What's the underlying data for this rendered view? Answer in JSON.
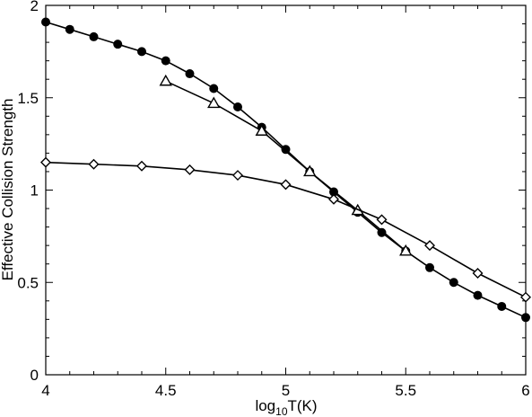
{
  "chart_data": {
    "type": "line",
    "xlabel": {
      "main": "log",
      "sub": "10",
      "rest": "T(K)"
    },
    "ylabel": "Effective Collision Strength",
    "xlim": [
      4,
      6
    ],
    "ylim": [
      0,
      2
    ],
    "x_ticks": [
      4,
      4.5,
      5,
      5.5,
      6
    ],
    "x_tick_labels": [
      "4",
      "4.5",
      "5",
      "5.5",
      "6"
    ],
    "y_ticks": [
      0,
      0.5,
      1,
      1.5,
      2
    ],
    "y_tick_labels": [
      "0",
      "0.5",
      "1",
      "1.5",
      "2"
    ],
    "grid": false,
    "legend": "none",
    "series": [
      {
        "marker": "filled-circle",
        "color": "#000000",
        "x": [
          4.0,
          4.1,
          4.2,
          4.3,
          4.4,
          4.5,
          4.6,
          4.7,
          4.8,
          4.9,
          5.0,
          5.1,
          5.2,
          5.3,
          5.4,
          5.5,
          5.6,
          5.7,
          5.8,
          5.9,
          6.0
        ],
        "y": [
          1.91,
          1.87,
          1.83,
          1.79,
          1.75,
          1.7,
          1.63,
          1.55,
          1.45,
          1.34,
          1.22,
          1.1,
          0.99,
          0.88,
          0.77,
          0.67,
          0.58,
          0.5,
          0.43,
          0.37,
          0.31
        ]
      },
      {
        "marker": "open-triangle",
        "color": "#000000",
        "x": [
          4.5,
          4.7,
          4.9,
          5.1,
          5.3,
          5.5
        ],
        "y": [
          1.59,
          1.47,
          1.32,
          1.1,
          0.89,
          0.67
        ]
      },
      {
        "marker": "open-diamond",
        "color": "#000000",
        "x": [
          4.0,
          4.2,
          4.4,
          4.6,
          4.8,
          5.0,
          5.2,
          5.4,
          5.6,
          5.8,
          6.0
        ],
        "y": [
          1.15,
          1.14,
          1.13,
          1.11,
          1.08,
          1.03,
          0.95,
          0.84,
          0.7,
          0.55,
          0.42
        ]
      }
    ]
  }
}
